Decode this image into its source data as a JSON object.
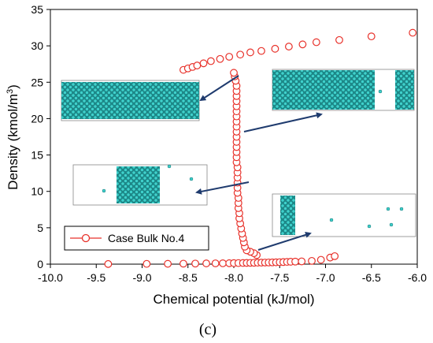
{
  "chart_data": {
    "type": "scatter",
    "xlabel": "Chemical potential (kJ/mol)",
    "ylabel_main": "Density (kmol/m",
    "ylabel_sup": "3",
    "ylabel_close": ")",
    "xlim": [
      -10.0,
      -6.0
    ],
    "ylim": [
      0,
      35
    ],
    "x_ticks": [
      "-10.0",
      "-9.5",
      "-9.0",
      "-8.5",
      "-8.0",
      "-7.5",
      "-7.0",
      "-6.5",
      "-6.0"
    ],
    "y_ticks": [
      "0",
      "5",
      "10",
      "15",
      "20",
      "25",
      "30",
      "35"
    ],
    "grid": false,
    "legend_position": "bottom-left",
    "marker_color": "#e8312a",
    "series": [
      {
        "name": "Case Bulk No.4",
        "marker": "open-circle",
        "points": [
          [
            -9.37,
            0.02
          ],
          [
            -8.95,
            0.04
          ],
          [
            -8.72,
            0.05
          ],
          [
            -8.55,
            0.07
          ],
          [
            -8.42,
            0.08
          ],
          [
            -8.3,
            0.1
          ],
          [
            -8.2,
            0.11
          ],
          [
            -8.12,
            0.12
          ],
          [
            -8.05,
            0.13
          ],
          [
            -8.0,
            0.14
          ],
          [
            -7.95,
            0.15
          ],
          [
            -7.9,
            0.16
          ],
          [
            -7.86,
            0.17
          ],
          [
            -7.82,
            0.18
          ],
          [
            -7.78,
            0.19
          ],
          [
            -7.74,
            0.2
          ],
          [
            -7.7,
            0.21
          ],
          [
            -7.66,
            0.22
          ],
          [
            -7.62,
            0.23
          ],
          [
            -7.58,
            0.24
          ],
          [
            -7.54,
            0.25
          ],
          [
            -7.5,
            0.27
          ],
          [
            -7.46,
            0.29
          ],
          [
            -7.42,
            0.31
          ],
          [
            -7.38,
            0.33
          ],
          [
            -7.33,
            0.35
          ],
          [
            -7.26,
            0.38
          ],
          [
            -7.15,
            0.45
          ],
          [
            -7.05,
            0.6
          ],
          [
            -6.95,
            0.9
          ],
          [
            -6.9,
            1.1
          ],
          [
            -7.75,
            1.25
          ],
          [
            -7.78,
            1.5
          ],
          [
            -7.82,
            1.7
          ],
          [
            -7.86,
            1.9
          ],
          [
            -7.88,
            2.4
          ],
          [
            -7.89,
            3.0
          ],
          [
            -7.9,
            3.6
          ],
          [
            -7.91,
            4.2
          ],
          [
            -7.92,
            4.9
          ],
          [
            -7.93,
            5.6
          ],
          [
            -7.94,
            6.3
          ],
          [
            -7.94,
            7.0
          ],
          [
            -7.95,
            7.7
          ],
          [
            -7.95,
            8.4
          ],
          [
            -7.95,
            9.1
          ],
          [
            -7.96,
            9.8
          ],
          [
            -7.96,
            10.5
          ],
          [
            -7.96,
            11.2
          ],
          [
            -7.96,
            11.9
          ],
          [
            -7.96,
            12.6
          ],
          [
            -7.96,
            13.3
          ],
          [
            -7.97,
            14.0
          ],
          [
            -7.97,
            14.7
          ],
          [
            -7.97,
            15.4
          ],
          [
            -7.97,
            16.1
          ],
          [
            -7.97,
            16.8
          ],
          [
            -7.97,
            17.5
          ],
          [
            -7.97,
            18.2
          ],
          [
            -7.97,
            18.9
          ],
          [
            -7.97,
            19.6
          ],
          [
            -7.97,
            20.3
          ],
          [
            -7.97,
            21.0
          ],
          [
            -7.97,
            21.7
          ],
          [
            -7.97,
            22.4
          ],
          [
            -7.97,
            23.1
          ],
          [
            -7.97,
            23.8
          ],
          [
            -7.97,
            24.5
          ],
          [
            -7.98,
            25.2
          ],
          [
            -7.99,
            25.8
          ],
          [
            -8.0,
            26.3
          ],
          [
            -8.55,
            26.7
          ],
          [
            -8.5,
            26.9
          ],
          [
            -8.45,
            27.1
          ],
          [
            -8.4,
            27.3
          ],
          [
            -8.33,
            27.6
          ],
          [
            -8.25,
            27.9
          ],
          [
            -8.15,
            28.2
          ],
          [
            -8.05,
            28.5
          ],
          [
            -7.93,
            28.8
          ],
          [
            -7.82,
            29.1
          ],
          [
            -7.7,
            29.3
          ],
          [
            -7.55,
            29.6
          ],
          [
            -7.4,
            29.9
          ],
          [
            -7.25,
            30.2
          ],
          [
            -7.1,
            30.5
          ],
          [
            -6.85,
            30.8
          ],
          [
            -6.5,
            31.3
          ],
          [
            -6.05,
            31.8
          ]
        ]
      }
    ]
  },
  "caption": "(c)"
}
